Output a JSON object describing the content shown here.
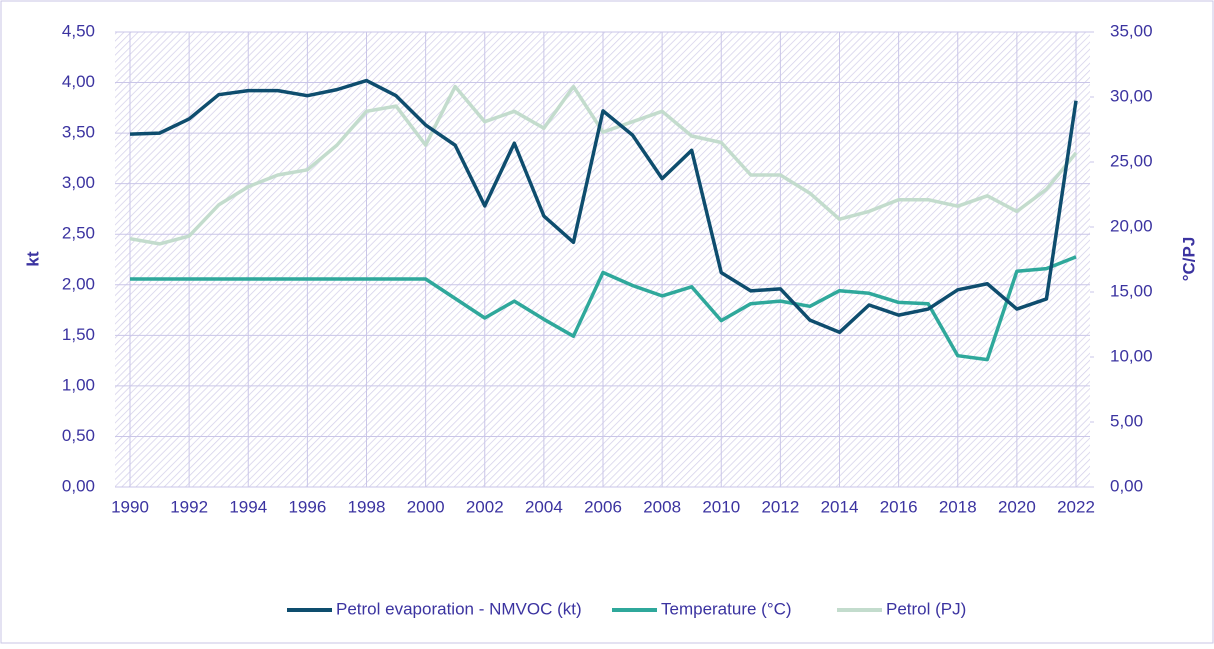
{
  "chart_data": {
    "type": "line",
    "x": [
      1990,
      1991,
      1992,
      1993,
      1994,
      1995,
      1996,
      1997,
      1998,
      1999,
      2000,
      2001,
      2002,
      2003,
      2004,
      2005,
      2006,
      2007,
      2008,
      2009,
      2010,
      2011,
      2012,
      2013,
      2014,
      2015,
      2016,
      2017,
      2018,
      2019,
      2020,
      2021,
      2022
    ],
    "xlim": [
      1990,
      2022
    ],
    "xticks": [
      1990,
      1992,
      1994,
      1996,
      1998,
      2000,
      2002,
      2004,
      2006,
      2008,
      2010,
      2012,
      2014,
      2016,
      2018,
      2020,
      2022
    ],
    "ylabel": "kt",
    "y2label": "°C/PJ",
    "ylim": [
      0,
      4.5
    ],
    "yticks": [
      {
        "value": 0,
        "label": "0,00"
      },
      {
        "value": 0.5,
        "label": "0,50"
      },
      {
        "value": 1,
        "label": "1,00"
      },
      {
        "value": 1.5,
        "label": "1,50"
      },
      {
        "value": 2,
        "label": "2,00"
      },
      {
        "value": 2.5,
        "label": "2,50"
      },
      {
        "value": 3,
        "label": "3,00"
      },
      {
        "value": 3.5,
        "label": "3,50"
      },
      {
        "value": 4,
        "label": "4,00"
      },
      {
        "value": 4.5,
        "label": "4,50"
      }
    ],
    "y2lim": [
      0,
      35
    ],
    "y2ticks": [
      {
        "value": 0,
        "label": "0,00"
      },
      {
        "value": 5,
        "label": "5,00"
      },
      {
        "value": 10,
        "label": "10,00"
      },
      {
        "value": 15,
        "label": "15,00"
      },
      {
        "value": 20,
        "label": "20,00"
      },
      {
        "value": 25,
        "label": "25,00"
      },
      {
        "value": 30,
        "label": "30,00"
      },
      {
        "value": 35,
        "label": "35,00"
      }
    ],
    "grid": true,
    "legend": "bottom",
    "series": [
      {
        "name": "Petrol evaporation - NMVOC (kt)",
        "color": "#0e4d6e",
        "values": [
          3.49,
          3.5,
          3.64,
          3.88,
          3.92,
          3.92,
          3.87,
          3.93,
          4.02,
          3.87,
          3.58,
          3.38,
          2.78,
          3.4,
          2.68,
          2.42,
          3.72,
          3.48,
          3.05,
          3.33,
          2.12,
          1.94,
          1.96,
          1.65,
          1.53,
          1.8,
          1.7,
          1.76,
          1.95,
          2.01,
          1.76,
          1.86,
          3.82
        ]
      },
      {
        "name": "Temperature (°C)",
        "color": "#2fa89b",
        "axis": "y2",
        "values": [
          16.0,
          16.0,
          16.0,
          16.0,
          16.0,
          16.0,
          16.0,
          16.0,
          16.0,
          16.0,
          16.0,
          14.5,
          13.0,
          14.3,
          12.9,
          11.6,
          16.5,
          15.5,
          14.7,
          15.4,
          12.8,
          14.1,
          14.3,
          13.9,
          15.1,
          14.9,
          14.2,
          14.1,
          10.1,
          9.8,
          16.6,
          16.8,
          17.7
        ]
      },
      {
        "name": "Petrol (PJ)",
        "color": "#c3dccd",
        "axis": "y2",
        "values": [
          19.1,
          18.7,
          19.3,
          21.7,
          23.1,
          24.0,
          24.4,
          26.3,
          28.9,
          29.3,
          26.3,
          30.8,
          28.1,
          28.9,
          27.6,
          30.8,
          27.3,
          28.1,
          28.9,
          27.0,
          26.5,
          24.0,
          24.0,
          22.6,
          20.6,
          21.2,
          22.1,
          22.1,
          21.6,
          22.4,
          21.2,
          22.9,
          25.7
        ]
      }
    ]
  }
}
